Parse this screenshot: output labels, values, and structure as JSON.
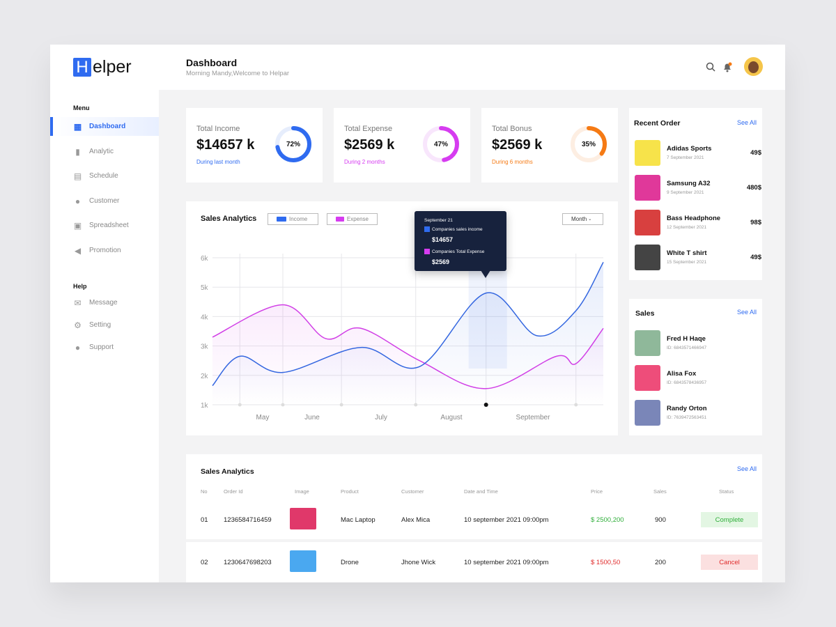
{
  "logo": {
    "mark": "H",
    "text": "elper"
  },
  "header": {
    "title": "Dashboard",
    "subtitle": "Morning Mandy,Welcome to Helpar"
  },
  "sidebar": {
    "menu_title": "Menu",
    "help_title": "Help",
    "menu": [
      {
        "label": "Dashboard",
        "icon": "dashboard-icon"
      },
      {
        "label": "Analytic",
        "icon": "bar-chart-icon"
      },
      {
        "label": "Schedule",
        "icon": "calendar-icon"
      },
      {
        "label": "Customer",
        "icon": "users-icon"
      },
      {
        "label": "Spreadsheet",
        "icon": "spreadsheet-icon"
      },
      {
        "label": "Promotion",
        "icon": "megaphone-icon"
      }
    ],
    "help": [
      {
        "label": "Message",
        "icon": "mail-icon"
      },
      {
        "label": "Setting",
        "icon": "gear-icon"
      },
      {
        "label": "Support",
        "icon": "chat-icon"
      }
    ]
  },
  "stats": [
    {
      "label": "Total Income",
      "value": "$14657 k",
      "sub": "During last month",
      "percent": 72,
      "percent_label": "72%",
      "color": "#2f6bf0",
      "track": "#e6edfc"
    },
    {
      "label": "Total Expense",
      "value": "$2569 k",
      "sub": "During 2 months",
      "percent": 47,
      "percent_label": "47%",
      "color": "#d63cf0",
      "track": "#f8e6fc"
    },
    {
      "label": "Total Bonus",
      "value": "$2569 k",
      "sub": "During 6 months",
      "percent": 35,
      "percent_label": "35%",
      "color": "#f57a14",
      "track": "#fdeee2"
    }
  ],
  "analytics": {
    "title": "Sales Analytics",
    "legend_income": "Income",
    "legend_expense": "Expense",
    "period": "Month",
    "tooltip": {
      "date": "September 21",
      "income_label": "Companies sales income",
      "income_value": "$14657",
      "expense_label": "Companies Total Expense",
      "expense_value": "$2569"
    }
  },
  "chart_data": {
    "type": "line",
    "title": "Sales Analytics",
    "ylim": [
      1,
      6
    ],
    "y_ticks": [
      "1k",
      "2k",
      "3k",
      "4k",
      "5k",
      "6k"
    ],
    "x_ticks": [
      "May",
      "June",
      "July",
      "August",
      "September"
    ],
    "colors": {
      "income": "#3366e0",
      "expense": "#d13ee6"
    },
    "series": [
      {
        "name": "Income",
        "x": [
          0,
          7,
          18,
          38,
          53,
          70,
          83,
          93,
          100
        ],
        "values": [
          1.65,
          2.65,
          2.1,
          2.95,
          2.3,
          4.8,
          3.35,
          4.2,
          5.85
        ]
      },
      {
        "name": "Expense",
        "x": [
          0,
          18,
          29,
          38,
          53,
          70,
          88,
          93,
          100
        ],
        "values": [
          3.3,
          4.4,
          3.25,
          3.6,
          2.5,
          1.55,
          2.65,
          2.4,
          3.6
        ]
      }
    ],
    "highlight_x": 70
  },
  "recent_orders": {
    "title": "Recent Order",
    "see_all": "See All",
    "items": [
      {
        "name": "Adidas Sports",
        "date": "7 September 2021",
        "price": "49$"
      },
      {
        "name": "Samsung A32",
        "date": "9 September 2021",
        "price": "480$"
      },
      {
        "name": "Bass Headphone",
        "date": "12 September 2021",
        "price": "98$"
      },
      {
        "name": "White T shirt",
        "date": "15 September 2021",
        "price": "49$"
      }
    ]
  },
  "sales": {
    "title": "Sales",
    "see_all": "See All",
    "items": [
      {
        "name": "Fred H Haqe",
        "id": "ID: 6843571466947"
      },
      {
        "name": "Alisa Fox",
        "id": "ID: 6843578436957"
      },
      {
        "name": "Randy Orton",
        "id": "ID: 7639472563451"
      }
    ]
  },
  "table": {
    "title": "Sales Analytics",
    "see_all": "See All",
    "headers": [
      "No",
      "Order Id",
      "Image",
      "Product",
      "Customer",
      "Date and Time",
      "Price",
      "Sales",
      "Status"
    ],
    "rows": [
      {
        "no": "01",
        "order_id": "1236584716459",
        "product": "Mac Laptop",
        "customer": "Alex Mica",
        "date": "10 september 2021 09:00pm",
        "price": "$ 2500,200",
        "sales": "900",
        "status": "Complete"
      },
      {
        "no": "02",
        "order_id": "1230647698203",
        "product": "Drone",
        "customer": "Jhone Wick",
        "date": "10 september 2021 09:00pm",
        "price": "$ 1500,50",
        "sales": "200",
        "status": "Cancel"
      }
    ]
  }
}
